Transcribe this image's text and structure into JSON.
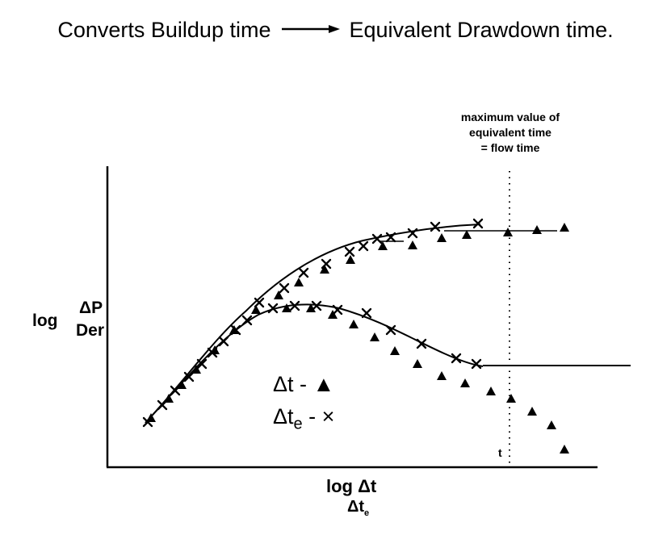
{
  "title": {
    "left": "Converts Buildup time",
    "right": "Equivalent Drawdown time."
  },
  "annotation": {
    "line1": "maximum value of",
    "line2": "equivalent time",
    "line3": "= flow time"
  },
  "y_axis_label": {
    "prefix": "log",
    "top": "ΔP",
    "bottom": "Der"
  },
  "x_axis_label": {
    "line1": "log Δt",
    "line2_main": "Δt",
    "line2_sub": "e"
  },
  "legend": {
    "triangle_label": "Δt - ",
    "triangle_symbol": "▲",
    "cross_label_main": "Δt",
    "cross_label_sub": "e",
    "cross_label_rest": " - ×"
  },
  "flow_time_marker": "t",
  "colors": {
    "ink": "#000000",
    "background": "#ffffff"
  },
  "icons": {
    "arrow": "right-arrow-icon",
    "triangle": "filled-triangle-marker",
    "cross": "x-marker"
  }
}
